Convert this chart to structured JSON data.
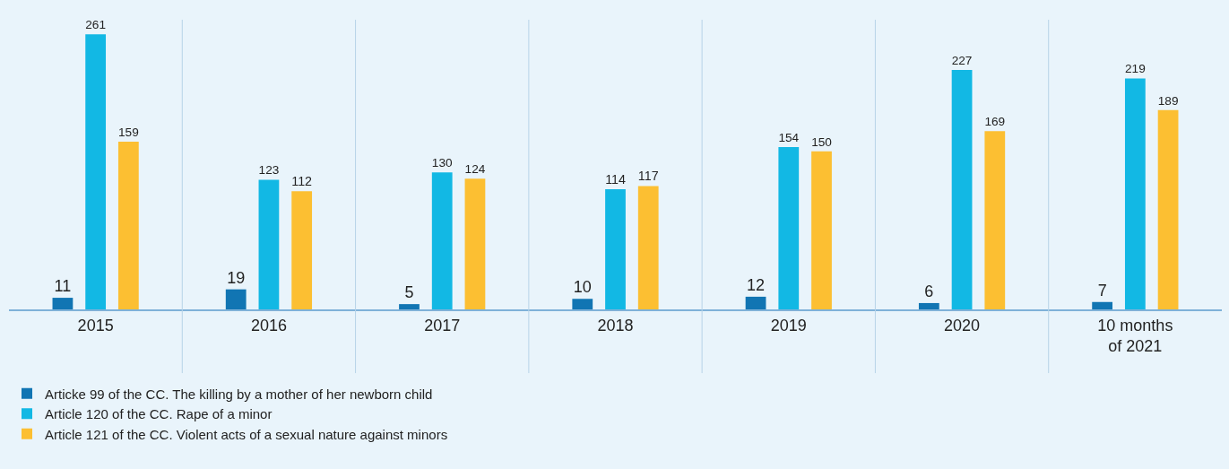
{
  "chart_data": {
    "type": "bar",
    "categories": [
      "2015",
      "2016",
      "2017",
      "2018",
      "2019",
      "2020",
      "10 months of 2021"
    ],
    "series": [
      {
        "name": "Articke 99 of the CC. The killing by a mother of her newborn child",
        "color": "#1175b3",
        "values": [
          11,
          19,
          5,
          10,
          12,
          6,
          7
        ]
      },
      {
        "name": "Article 120 of the CC. Rape of a minor",
        "color": "#12b8e4",
        "values": [
          261,
          123,
          130,
          114,
          154,
          227,
          219
        ]
      },
      {
        "name": "Article 121 of the CC. Violent acts of a sexual nature against minors",
        "color": "#fcbf32",
        "values": [
          159,
          112,
          124,
          117,
          150,
          169,
          189
        ]
      }
    ],
    "data_labels": true,
    "grid": "x",
    "legend": "bottom left"
  }
}
